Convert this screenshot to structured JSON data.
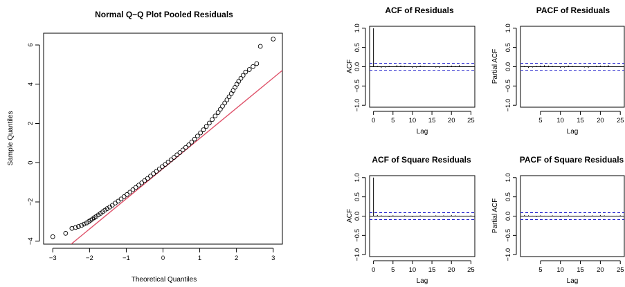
{
  "chart_data": [
    {
      "type": "scatter",
      "title": "Normal Q−Q Plot Pooled Residuals",
      "xlabel": "Theoretical Quantiles",
      "ylabel": "Sample Quantiles",
      "xlim": [
        -3.25,
        3.25
      ],
      "ylim": [
        -4.15,
        6.6
      ],
      "x_ticks": [
        -3,
        -2,
        -1,
        0,
        1,
        2,
        3
      ],
      "x_tick_labels": [
        "−3",
        "−2",
        "−1",
        "0",
        "1",
        "2",
        "3"
      ],
      "y_ticks": [
        -4,
        -2,
        0,
        2,
        4,
        6
      ],
      "y_tick_labels": [
        "−4",
        "−2",
        "0",
        "2",
        "4",
        "6"
      ],
      "colors": {
        "points": "#000000",
        "reference_line": "#DF536B"
      },
      "reference_line": {
        "intercept": -0.3,
        "slope": 1.54
      },
      "points": [
        [
          -3.0,
          -3.77
        ],
        [
          -2.65,
          -3.6
        ],
        [
          -2.48,
          -3.35
        ],
        [
          -2.38,
          -3.3
        ],
        [
          -2.3,
          -3.25
        ],
        [
          -2.22,
          -3.2
        ],
        [
          -2.15,
          -3.13
        ],
        [
          -2.08,
          -3.07
        ],
        [
          -2.02,
          -3.0
        ],
        [
          -1.97,
          -2.93
        ],
        [
          -1.92,
          -2.87
        ],
        [
          -1.87,
          -2.8
        ],
        [
          -1.82,
          -2.74
        ],
        [
          -1.76,
          -2.66
        ],
        [
          -1.7,
          -2.58
        ],
        [
          -1.64,
          -2.5
        ],
        [
          -1.58,
          -2.42
        ],
        [
          -1.52,
          -2.34
        ],
        [
          -1.45,
          -2.26
        ],
        [
          -1.38,
          -2.17
        ],
        [
          -1.3,
          -2.06
        ],
        [
          -1.22,
          -1.96
        ],
        [
          -1.14,
          -1.85
        ],
        [
          -1.06,
          -1.73
        ],
        [
          -0.98,
          -1.62
        ],
        [
          -0.9,
          -1.5
        ],
        [
          -0.82,
          -1.38
        ],
        [
          -0.74,
          -1.26
        ],
        [
          -0.66,
          -1.14
        ],
        [
          -0.58,
          -1.03
        ],
        [
          -0.5,
          -0.91
        ],
        [
          -0.42,
          -0.8
        ],
        [
          -0.34,
          -0.68
        ],
        [
          -0.26,
          -0.56
        ],
        [
          -0.18,
          -0.44
        ],
        [
          -0.1,
          -0.32
        ],
        [
          -0.02,
          -0.2
        ],
        [
          0.06,
          -0.09
        ],
        [
          0.14,
          0.03
        ],
        [
          0.22,
          0.15
        ],
        [
          0.3,
          0.27
        ],
        [
          0.38,
          0.4
        ],
        [
          0.46,
          0.52
        ],
        [
          0.54,
          0.65
        ],
        [
          0.62,
          0.78
        ],
        [
          0.7,
          0.91
        ],
        [
          0.78,
          1.05
        ],
        [
          0.86,
          1.2
        ],
        [
          0.94,
          1.36
        ],
        [
          1.02,
          1.52
        ],
        [
          1.1,
          1.68
        ],
        [
          1.18,
          1.85
        ],
        [
          1.26,
          2.02
        ],
        [
          1.34,
          2.2
        ],
        [
          1.42,
          2.38
        ],
        [
          1.5,
          2.56
        ],
        [
          1.56,
          2.72
        ],
        [
          1.62,
          2.88
        ],
        [
          1.68,
          3.04
        ],
        [
          1.74,
          3.2
        ],
        [
          1.8,
          3.36
        ],
        [
          1.86,
          3.52
        ],
        [
          1.91,
          3.68
        ],
        [
          1.96,
          3.84
        ],
        [
          2.01,
          4.0
        ],
        [
          2.06,
          4.15
        ],
        [
          2.12,
          4.3
        ],
        [
          2.18,
          4.45
        ],
        [
          2.25,
          4.62
        ],
        [
          2.35,
          4.75
        ],
        [
          2.45,
          4.9
        ],
        [
          2.55,
          5.05
        ],
        [
          2.65,
          5.93
        ],
        [
          3.0,
          6.3
        ]
      ]
    },
    {
      "type": "bar",
      "title": "ACF of Residuals",
      "xlabel": "Lag",
      "ylabel": "ACF",
      "xlim": [
        -1,
        26
      ],
      "ylim": [
        -1.05,
        1.05
      ],
      "x_ticks": [
        0,
        5,
        10,
        15,
        20,
        25
      ],
      "x_tick_labels": [
        "0",
        "5",
        "10",
        "15",
        "20",
        "25"
      ],
      "y_ticks": [
        -1.0,
        -0.5,
        0.0,
        0.5,
        1.0
      ],
      "y_tick_labels": [
        "−1.0",
        "−0.5",
        "0.0",
        "0.5",
        "1.0"
      ],
      "confidence_band": 0.09,
      "lags": [
        0,
        1,
        2,
        3,
        4,
        5,
        6,
        7,
        8,
        9,
        10,
        11,
        12,
        13,
        14,
        15,
        16,
        17,
        18,
        19,
        20,
        21,
        22,
        23,
        24,
        25
      ],
      "values": [
        1.0,
        0.02,
        -0.03,
        -0.02,
        0.02,
        0.01,
        0.04,
        0.03,
        0.02,
        -0.01,
        -0.03,
        -0.02,
        0.03,
        0.02,
        0.01,
        0.0,
        -0.02,
        -0.03,
        0.01,
        0.02,
        0.03,
        0.02,
        0.04,
        0.01,
        -0.01,
        0.01
      ]
    },
    {
      "type": "bar",
      "title": "PACF of Residuals",
      "xlabel": "Lag",
      "ylabel": "Partial ACF",
      "xlim": [
        0,
        26
      ],
      "ylim": [
        -1.05,
        1.05
      ],
      "x_ticks": [
        5,
        10,
        15,
        20,
        25
      ],
      "x_tick_labels": [
        "5",
        "10",
        "15",
        "20",
        "25"
      ],
      "y_ticks": [
        -1.0,
        -0.5,
        0.0,
        0.5,
        1.0
      ],
      "y_tick_labels": [
        "−1.0",
        "−0.5",
        "0.0",
        "0.5",
        "1.0"
      ],
      "confidence_band": 0.09,
      "lags": [
        1,
        2,
        3,
        4,
        5,
        6,
        7,
        8,
        9,
        10,
        11,
        12,
        13,
        14,
        15,
        16,
        17,
        18,
        19,
        20,
        21,
        22,
        23,
        24,
        25
      ],
      "values": [
        0.02,
        -0.03,
        -0.02,
        0.02,
        0.03,
        0.04,
        0.03,
        0.02,
        -0.01,
        -0.03,
        -0.02,
        0.03,
        0.02,
        0.01,
        0.0,
        -0.02,
        -0.03,
        0.01,
        0.02,
        0.03,
        0.02,
        0.04,
        0.01,
        -0.01,
        0.01
      ]
    },
    {
      "type": "bar",
      "title": "ACF of Square Residuals",
      "xlabel": "Lag",
      "ylabel": "ACF",
      "xlim": [
        -1,
        26
      ],
      "ylim": [
        -1.05,
        1.05
      ],
      "x_ticks": [
        0,
        5,
        10,
        15,
        20,
        25
      ],
      "x_tick_labels": [
        "0",
        "5",
        "10",
        "15",
        "20",
        "25"
      ],
      "y_ticks": [
        -1.0,
        -0.5,
        0.0,
        0.5,
        1.0
      ],
      "y_tick_labels": [
        "−1.0",
        "−0.5",
        "0.0",
        "0.5",
        "1.0"
      ],
      "confidence_band": 0.09,
      "lags": [
        0,
        1,
        2,
        3,
        4,
        5,
        6,
        7,
        8,
        9,
        10,
        11,
        12,
        13,
        14,
        15,
        16,
        17,
        18,
        19,
        20,
        21,
        22,
        23,
        24,
        25
      ],
      "values": [
        1.0,
        0.03,
        0.02,
        0.01,
        -0.02,
        0.02,
        0.01,
        -0.01,
        0.02,
        0.01,
        -0.02,
        0.01,
        0.02,
        0.01,
        -0.01,
        0.0,
        0.02,
        0.01,
        0.02,
        0.01,
        0.03,
        0.02,
        0.01,
        -0.01,
        0.01,
        0.02
      ]
    },
    {
      "type": "bar",
      "title": "PACF of Square Residuals",
      "xlabel": "Lag",
      "ylabel": "Partial ACF",
      "xlim": [
        0,
        26
      ],
      "ylim": [
        -1.05,
        1.05
      ],
      "x_ticks": [
        5,
        10,
        15,
        20,
        25
      ],
      "x_tick_labels": [
        "5",
        "10",
        "15",
        "20",
        "25"
      ],
      "y_ticks": [
        -1.0,
        -0.5,
        0.0,
        0.5,
        1.0
      ],
      "y_tick_labels": [
        "−1.0",
        "−0.5",
        "0.0",
        "0.5",
        "1.0"
      ],
      "confidence_band": 0.09,
      "lags": [
        1,
        2,
        3,
        4,
        5,
        6,
        7,
        8,
        9,
        10,
        11,
        12,
        13,
        14,
        15,
        16,
        17,
        18,
        19,
        20,
        21,
        22,
        23,
        24,
        25
      ],
      "values": [
        0.03,
        0.02,
        0.01,
        -0.02,
        0.02,
        0.01,
        -0.01,
        0.02,
        0.01,
        -0.02,
        0.01,
        0.02,
        0.01,
        -0.01,
        0.0,
        0.02,
        0.01,
        0.02,
        0.01,
        0.03,
        0.02,
        0.01,
        -0.01,
        0.01,
        0.02
      ]
    }
  ]
}
